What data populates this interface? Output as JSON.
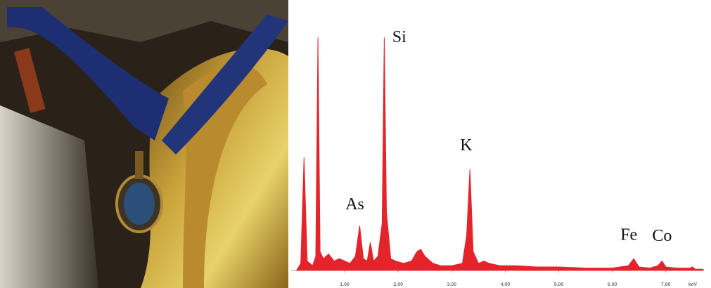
{
  "chart_data": {
    "type": "area",
    "color": "#e3252b",
    "x": [
      0.1,
      0.18,
      0.24,
      0.3,
      0.4,
      0.46,
      0.5,
      0.54,
      0.6,
      0.7,
      0.8,
      0.9,
      1.0,
      1.1,
      1.2,
      1.28,
      1.35,
      1.42,
      1.48,
      1.54,
      1.62,
      1.7,
      1.74,
      1.78,
      1.86,
      1.95,
      2.1,
      2.25,
      2.35,
      2.42,
      2.5,
      2.65,
      2.8,
      3.0,
      3.2,
      3.28,
      3.34,
      3.4,
      3.5,
      3.6,
      3.7,
      3.9,
      4.2,
      4.6,
      5.0,
      5.5,
      6.0,
      6.3,
      6.4,
      6.5,
      6.7,
      6.85,
      6.93,
      7.0,
      7.2,
      7.45,
      7.5,
      7.55,
      7.7
    ],
    "values": [
      0,
      3,
      48,
      4,
      2,
      6,
      99,
      8,
      5,
      7,
      4,
      5,
      4,
      3,
      6,
      19,
      5,
      4,
      12,
      4,
      6,
      20,
      99,
      25,
      5,
      4,
      3,
      4,
      8,
      9,
      6,
      3,
      2,
      2,
      3,
      15,
      43,
      8,
      3,
      4,
      3,
      2,
      2,
      1.5,
      1.5,
      1,
      1,
      2,
      5,
      1.5,
      1,
      2,
      4,
      1.5,
      1,
      1,
      1.5,
      0.5,
      0.5
    ],
    "xlim": [
      0,
      7.7
    ],
    "ylim": [
      0,
      100
    ],
    "xticks": [
      {
        "value": 1,
        "label": "1.00"
      },
      {
        "value": 2,
        "label": "2.00"
      },
      {
        "value": 3,
        "label": "3.00"
      },
      {
        "value": 4,
        "label": "4.00"
      },
      {
        "value": 5,
        "label": "5.00"
      },
      {
        "value": 6,
        "label": "6.00"
      },
      {
        "value": 7,
        "label": "7.00"
      }
    ],
    "x_label": "keV",
    "annotations": [
      {
        "text": "As",
        "x": 1.19,
        "y": 26
      },
      {
        "text": "Si",
        "x": 2.02,
        "y": 97
      },
      {
        "text": "K",
        "x": 3.27,
        "y": 51
      },
      {
        "text": "Fe",
        "x": 6.31,
        "y": 13
      },
      {
        "text": "Co",
        "x": 6.93,
        "y": 12.5
      }
    ]
  }
}
